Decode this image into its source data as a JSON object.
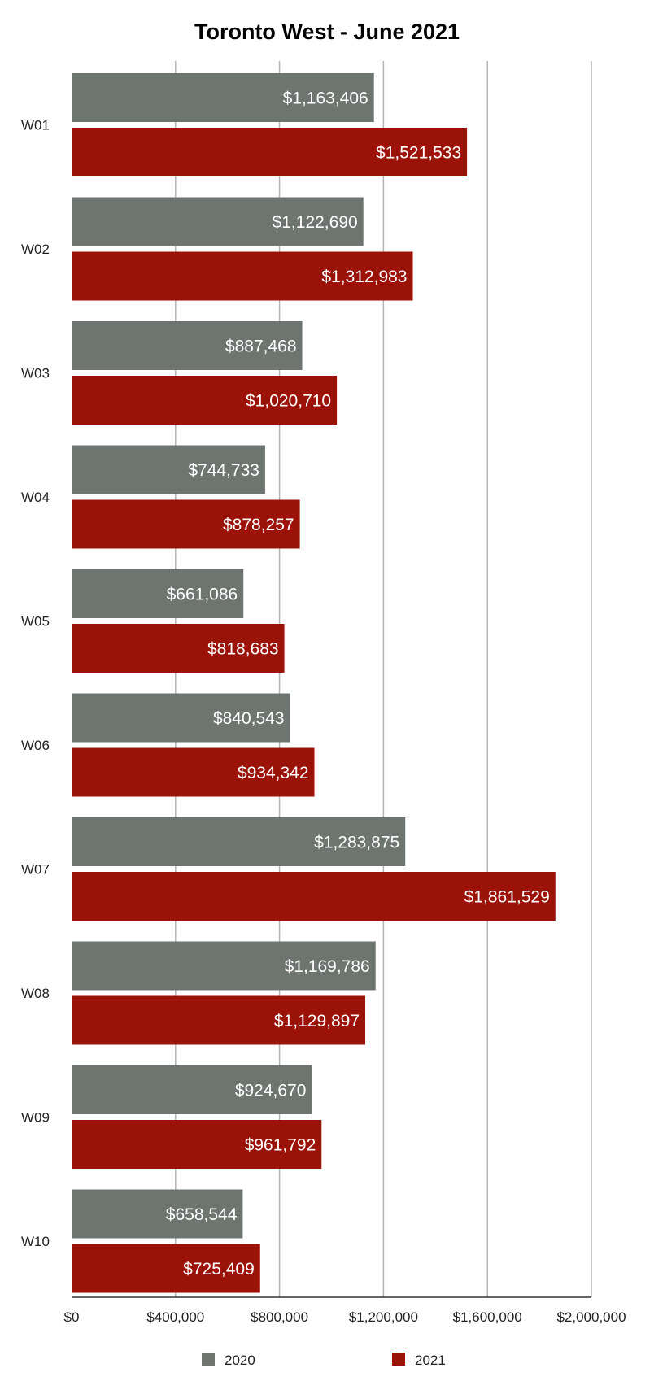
{
  "chart_data": {
    "type": "bar",
    "orientation": "horizontal",
    "title": "Toronto West - June 2021",
    "xlabel": "",
    "ylabel": "",
    "categories": [
      "W01",
      "W02",
      "W03",
      "W04",
      "W05",
      "W06",
      "W07",
      "W08",
      "W09",
      "W10"
    ],
    "series": [
      {
        "name": "2020",
        "color": "#6e7570",
        "values": [
          1163406,
          1122690,
          887468,
          744733,
          661086,
          840543,
          1283875,
          1169786,
          924670,
          658544
        ],
        "labels": [
          "$1,163,406",
          "$1,122,690",
          "$887,468",
          "$744,733",
          "$661,086",
          "$840,543",
          "$1,283,875",
          "$1,169,786",
          "$924,670",
          "$658,544"
        ]
      },
      {
        "name": "2021",
        "color": "#9b1208",
        "values": [
          1521533,
          1312983,
          1020710,
          878257,
          818683,
          934342,
          1861529,
          1129897,
          961792,
          725409
        ],
        "labels": [
          "$1,521,533",
          "$1,312,983",
          "$1,020,710",
          "$878,257",
          "$818,683",
          "$934,342",
          "$1,861,529",
          "$1,129,897",
          "$961,792",
          "$725,409"
        ]
      }
    ],
    "xlim": [
      0,
      2000000
    ],
    "ticks": [
      0,
      400000,
      800000,
      1200000,
      1600000,
      2000000
    ],
    "tick_labels": [
      "$0",
      "$400,000",
      "$800,000",
      "$1,200,000",
      "$1,600,000",
      "$2,000,000"
    ],
    "grid": true,
    "grid_color": "#b4b4b4",
    "legend": "bottom"
  }
}
